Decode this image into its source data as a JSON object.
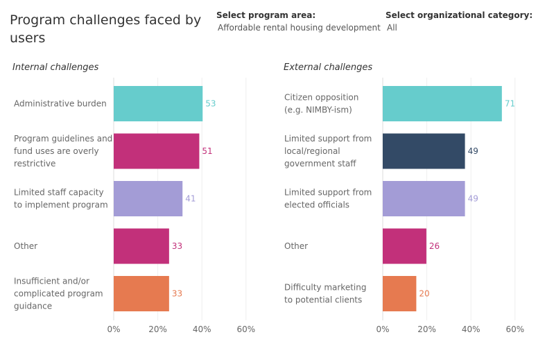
{
  "header": {
    "title": "Program challenges faced by users",
    "filters": [
      {
        "label": "Select program area:",
        "value": "Affordable rental housing development"
      },
      {
        "label": "Select organizational category:",
        "value": "All"
      }
    ]
  },
  "chart_data": [
    {
      "type": "bar",
      "orientation": "horizontal",
      "title": "Internal challenges",
      "categories": [
        "Administrative burden",
        "Program guidelines and fund uses are overly restrictive",
        "Limited staff capacity to implement program",
        "Other",
        "Insufficient and/or complicated program guidance"
      ],
      "values": [
        53,
        51,
        41,
        33,
        33
      ],
      "value_labels": [
        "53",
        "51",
        "41",
        "33",
        "33"
      ],
      "colors": [
        "#66cccc",
        "#c2307a",
        "#a39cd6",
        "#c2307a",
        "#e67a50"
      ],
      "label_colors": [
        "#66cccc",
        "#c2307a",
        "#a39cd6",
        "#c2307a",
        "#e67a50"
      ],
      "xaxis": {
        "ticks": [
          "0%",
          "20%",
          "40%",
          "60%"
        ],
        "tick_values": [
          0,
          20,
          40,
          60
        ]
      },
      "grid": true
    },
    {
      "type": "bar",
      "orientation": "horizontal",
      "title": "External challenges",
      "categories": [
        "Citizen opposition (e.g. NIMBY-ism)",
        "Limited support from local/regional government staff",
        "Limited support from elected officials",
        "Other",
        "Difficulty marketing to potential clients"
      ],
      "values": [
        71,
        49,
        49,
        26,
        20
      ],
      "value_labels": [
        "71",
        "49",
        "49",
        "26",
        "20"
      ],
      "colors": [
        "#66cccc",
        "#334a66",
        "#a39cd6",
        "#c2307a",
        "#e67a50"
      ],
      "label_colors": [
        "#66cccc",
        "#334a66",
        "#a39cd6",
        "#c2307a",
        "#e67a50"
      ],
      "xaxis": {
        "ticks": [
          "0%",
          "20%",
          "40%",
          "60%"
        ],
        "tick_values": [
          0,
          20,
          40,
          60
        ]
      },
      "grid": true
    }
  ]
}
